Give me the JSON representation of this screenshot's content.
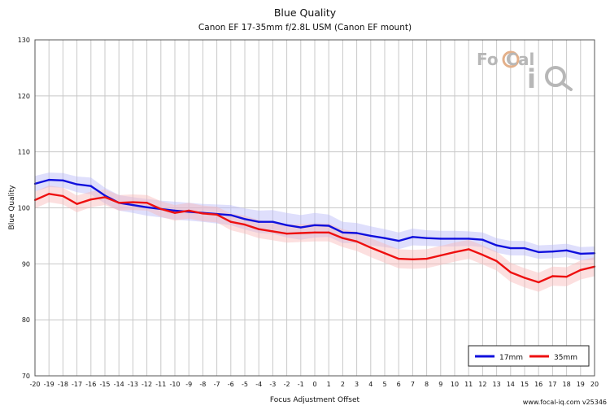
{
  "chart_data": {
    "type": "line",
    "title": "Blue Quality",
    "subtitle": "Canon EF 17-35mm f/2.8L USM (Canon EF mount)",
    "xlabel": "Focus Adjustment Offset",
    "ylabel": "Blue Quality",
    "xlim": [
      -20,
      20
    ],
    "ylim": [
      70,
      130
    ],
    "yticks": [
      70,
      80,
      90,
      100,
      110,
      120,
      130
    ],
    "grid": true,
    "legend_position": "bottom-right",
    "x": [
      -20,
      -19,
      -18,
      -17,
      -16,
      -15,
      -14,
      -13,
      -12,
      -11,
      -10,
      -9,
      -8,
      -7,
      -6,
      -5,
      -4,
      -3,
      -2,
      -1,
      0,
      1,
      2,
      3,
      4,
      5,
      6,
      7,
      8,
      9,
      10,
      11,
      12,
      13,
      14,
      15,
      16,
      17,
      18,
      19,
      20
    ],
    "series": [
      {
        "name": "17mm",
        "color": "#1010dd",
        "band_color": "#b8b8f8",
        "values": [
          104.3,
          105.0,
          104.9,
          104.2,
          103.9,
          102.2,
          100.9,
          100.5,
          100.1,
          99.8,
          99.5,
          99.3,
          99.1,
          98.9,
          98.7,
          98.0,
          97.5,
          97.5,
          96.9,
          96.5,
          96.9,
          96.8,
          95.6,
          95.5,
          95.0,
          94.6,
          94.1,
          94.8,
          94.6,
          94.5,
          94.5,
          94.5,
          94.3,
          93.3,
          92.8,
          92.8,
          92.1,
          92.2,
          92.4,
          91.8,
          91.9
        ],
        "band_half_width": [
          1.4,
          1.3,
          1.3,
          1.4,
          1.5,
          1.4,
          1.4,
          1.4,
          1.5,
          1.5,
          1.6,
          1.6,
          1.6,
          1.7,
          1.8,
          1.9,
          2.0,
          2.1,
          2.2,
          2.2,
          2.2,
          2.0,
          1.9,
          1.8,
          1.7,
          1.6,
          1.5,
          1.5,
          1.4,
          1.4,
          1.4,
          1.3,
          1.3,
          1.3,
          1.3,
          1.3,
          1.2,
          1.2,
          1.2,
          1.2,
          1.2
        ]
      },
      {
        "name": "35mm",
        "color": "#ee1010",
        "band_color": "#f8b8b8",
        "values": [
          101.4,
          102.5,
          102.1,
          100.7,
          101.5,
          101.9,
          100.9,
          101.0,
          100.9,
          99.8,
          99.1,
          99.5,
          99.0,
          98.8,
          97.5,
          97.0,
          96.2,
          95.8,
          95.4,
          95.5,
          95.6,
          95.6,
          94.6,
          94.0,
          92.9,
          91.9,
          90.9,
          90.8,
          90.9,
          91.5,
          92.1,
          92.6,
          91.6,
          90.5,
          88.5,
          87.5,
          86.7,
          87.8,
          87.7,
          88.9,
          89.5
        ],
        "band_half_width": [
          1.5,
          1.5,
          1.5,
          1.5,
          1.4,
          1.4,
          1.4,
          1.4,
          1.4,
          1.4,
          1.4,
          1.4,
          1.4,
          1.4,
          1.5,
          1.6,
          1.6,
          1.6,
          1.6,
          1.6,
          1.6,
          1.6,
          1.6,
          1.7,
          1.7,
          1.7,
          1.7,
          1.7,
          1.7,
          1.7,
          1.7,
          1.7,
          1.7,
          1.7,
          1.7,
          1.7,
          1.7,
          1.7,
          1.7,
          1.7,
          1.7
        ]
      }
    ]
  },
  "logo": {
    "text": "FoCal iQ"
  },
  "footer": {
    "text": "www.focal-iq.com  v25346"
  }
}
